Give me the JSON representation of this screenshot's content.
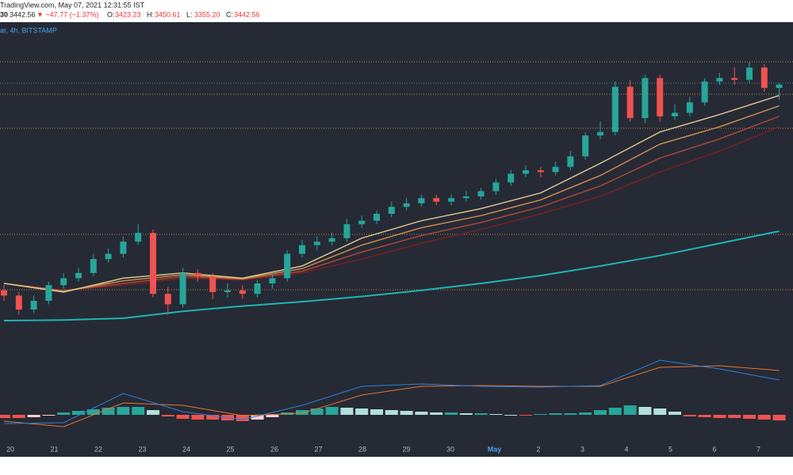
{
  "header": {
    "site_line": "TradingView.com, May 07, 2021 12:31:55 IST",
    "symbol_fragment": "30",
    "last": "3442.56",
    "change": "▼ −47.77 (−1.37%)",
    "ohlc": [
      {
        "label": "O:",
        "value": "3423.23"
      },
      {
        "label": "H:",
        "value": "3450.61"
      },
      {
        "label": "L:",
        "value": "3355.20"
      },
      {
        "label": "C:",
        "value": "3442.56"
      }
    ],
    "pane_title": "ar, 4h, BITSTAMP"
  },
  "chart_data": {
    "type": "candlestick",
    "x_labels": [
      "20",
      "21",
      "22",
      "23",
      "24",
      "25",
      "26",
      "27",
      "28",
      "29",
      "30",
      "May",
      "2",
      "3",
      "4",
      "5",
      "6",
      "7"
    ],
    "ylim": [
      1927,
      3801
    ],
    "open": [
      2260,
      2230,
      2150,
      2200,
      2290,
      2330,
      2360,
      2440,
      2470,
      2540,
      2590,
      2240,
      2180,
      2360,
      2340,
      2250,
      2260,
      2240,
      2300,
      2330,
      2470,
      2520,
      2540,
      2560,
      2640,
      2660,
      2700,
      2740,
      2760,
      2790,
      2770,
      2790,
      2800,
      2830,
      2880,
      2930,
      2950,
      2940,
      2970,
      3030,
      3150,
      3170,
      3430,
      3250,
      3480,
      3260,
      3280,
      3340,
      3460,
      3480,
      3470,
      3540,
      3423.23
    ],
    "high": [
      2290,
      2250,
      2230,
      2310,
      2360,
      2390,
      2470,
      2500,
      2570,
      2640,
      2610,
      2280,
      2390,
      2380,
      2360,
      2300,
      2290,
      2320,
      2360,
      2490,
      2550,
      2570,
      2590,
      2670,
      2690,
      2720,
      2770,
      2790,
      2810,
      2810,
      2810,
      2830,
      2850,
      2900,
      2950,
      2980,
      2970,
      3000,
      3060,
      3170,
      3230,
      3460,
      3470,
      3500,
      3500,
      3330,
      3370,
      3480,
      3510,
      3540,
      3570,
      3560,
      3450.61
    ],
    "low": [
      2200,
      2120,
      2130,
      2180,
      2270,
      2310,
      2340,
      2420,
      2450,
      2520,
      2220,
      2120,
      2160,
      2310,
      2210,
      2220,
      2210,
      2220,
      2270,
      2310,
      2450,
      2490,
      2520,
      2540,
      2620,
      2640,
      2680,
      2720,
      2740,
      2750,
      2750,
      2770,
      2780,
      2810,
      2860,
      2910,
      2910,
      2920,
      2950,
      3010,
      3130,
      3150,
      3230,
      3220,
      3230,
      3240,
      3260,
      3320,
      3440,
      3440,
      3450,
      3400,
      3355.2
    ],
    "close": [
      2230,
      2150,
      2200,
      2290,
      2330,
      2360,
      2440,
      2470,
      2540,
      2590,
      2240,
      2180,
      2360,
      2340,
      2250,
      2260,
      2240,
      2300,
      2330,
      2470,
      2520,
      2540,
      2560,
      2640,
      2660,
      2700,
      2740,
      2760,
      2790,
      2770,
      2790,
      2800,
      2830,
      2880,
      2930,
      2950,
      2940,
      2970,
      3030,
      3150,
      3170,
      3430,
      3250,
      3480,
      3260,
      3280,
      3340,
      3460,
      3480,
      3470,
      3540,
      3423.23,
      3442.56
    ],
    "up_color": "#26a69a",
    "down_color": "#ef5350",
    "ribbon": [
      {
        "color": "#d9c28e",
        "values": [
          2300,
          2250,
          2330,
          2360,
          2330,
          2400,
          2560,
          2660,
          2730,
          2820,
          2990,
          3170,
          3270,
          3380
        ]
      },
      {
        "color": "#c98a4f",
        "values": [
          2300,
          2255,
          2315,
          2350,
          2327,
          2385,
          2520,
          2620,
          2690,
          2780,
          2920,
          3100,
          3200,
          3320
        ]
      },
      {
        "color": "#a8463a",
        "values": [
          2300,
          2258,
          2300,
          2340,
          2323,
          2370,
          2480,
          2575,
          2650,
          2740,
          2860,
          3020,
          3130,
          3260
        ]
      },
      {
        "color": "#7a1f22",
        "values": [
          2300,
          2260,
          2290,
          2330,
          2320,
          2360,
          2440,
          2530,
          2610,
          2700,
          2800,
          2940,
          3060,
          3200
        ]
      }
    ],
    "long_ma": {
      "color": "#1fb5b5",
      "values": [
        2086,
        2090,
        2100,
        2140,
        2170,
        2195,
        2225,
        2260,
        2300,
        2345,
        2400,
        2460,
        2530,
        2600
      ]
    },
    "macd": {
      "ylim": [
        -36,
        84
      ],
      "macd_color": "#2f7fd6",
      "signal_color": "#e8742c",
      "macd": [
        -11,
        -10,
        27,
        4,
        -6,
        12,
        36,
        39,
        36,
        35,
        37,
        69,
        58,
        44
      ],
      "signal": [
        -8,
        -15,
        15,
        12,
        -1,
        2,
        25,
        36,
        37,
        36,
        36,
        60,
        62,
        56
      ],
      "histogram": [
        -4,
        -4,
        -3,
        -1,
        3,
        5,
        7,
        9,
        10,
        10,
        6,
        -2,
        -5,
        -6,
        -6,
        -7,
        -8,
        -6,
        -3,
        3,
        6,
        8,
        10,
        9,
        8,
        7,
        6,
        5,
        4,
        3,
        3,
        2,
        2,
        1,
        0,
        -1,
        1,
        2,
        2,
        3,
        6,
        9,
        12,
        10,
        8,
        4,
        -2,
        -3,
        -4,
        -4,
        -5,
        -6,
        -7
      ]
    }
  }
}
